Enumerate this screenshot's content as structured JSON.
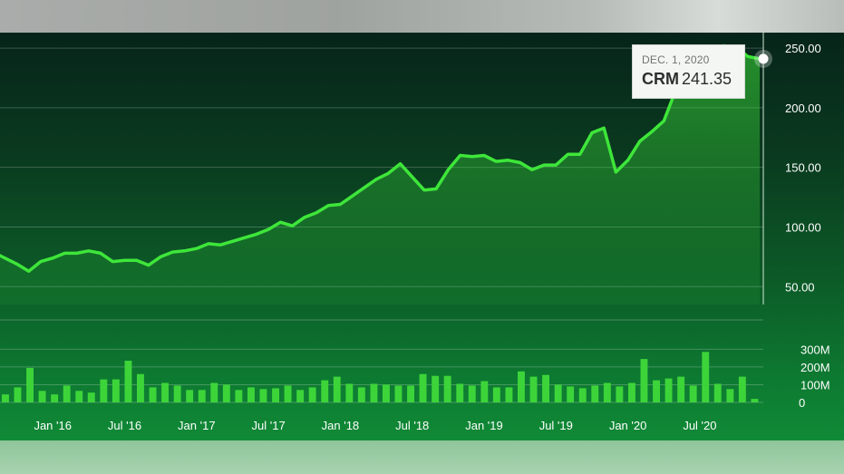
{
  "tooltip": {
    "date": "DEC. 1, 2020",
    "ticker": "CRM",
    "value": "241.35"
  },
  "colors": {
    "line": "#3ee63a",
    "bars": "#3dd43a",
    "tooltip_bg": "#f4f6f4"
  },
  "chart_data": [
    {
      "type": "area",
      "y_axis_side": "right",
      "ylim": [
        35,
        263
      ],
      "y_ticks": [
        50,
        100,
        150,
        200,
        250
      ],
      "y_tick_labels": [
        "50.00",
        "100.00",
        "150.00",
        "200.00",
        "250.00"
      ],
      "x_tick_labels": [
        "Jan '16",
        "Jul '16",
        "Jan '17",
        "Jul '17",
        "Jan '18",
        "Jul '18",
        "Jan '19",
        "Jul '19",
        "Jan '20",
        "Jul '20"
      ],
      "x_tick_dates": [
        "2016-01",
        "2016-07",
        "2017-01",
        "2017-07",
        "2018-01",
        "2018-07",
        "2019-01",
        "2019-07",
        "2020-01",
        "2020-07"
      ],
      "series": [
        {
          "x": [
            "2015-08",
            "2015-09",
            "2015-10",
            "2015-11",
            "2015-12",
            "2016-01",
            "2016-02",
            "2016-03",
            "2016-04",
            "2016-05",
            "2016-06",
            "2016-07",
            "2016-08",
            "2016-09",
            "2016-10",
            "2016-11",
            "2016-12",
            "2017-01",
            "2017-02",
            "2017-03",
            "2017-04",
            "2017-05",
            "2017-06",
            "2017-07",
            "2017-08",
            "2017-09",
            "2017-10",
            "2017-11",
            "2017-12",
            "2018-01",
            "2018-02",
            "2018-03",
            "2018-04",
            "2018-05",
            "2018-06",
            "2018-07",
            "2018-08",
            "2018-09",
            "2018-10",
            "2018-11",
            "2018-12",
            "2019-01",
            "2019-02",
            "2019-03",
            "2019-04",
            "2019-05",
            "2019-06",
            "2019-07",
            "2019-08",
            "2019-09",
            "2019-10",
            "2019-11",
            "2019-12",
            "2020-01",
            "2020-02",
            "2020-03",
            "2020-04",
            "2020-05",
            "2020-06",
            "2020-07",
            "2020-08",
            "2020-09",
            "2020-10",
            "2020-11",
            "2020-12"
          ],
          "values": [
            79,
            74,
            69,
            63,
            71,
            74,
            78,
            78,
            80,
            78,
            71,
            72,
            72,
            68,
            75,
            79,
            80,
            82,
            86,
            85,
            88,
            91,
            94,
            98,
            104,
            101,
            108,
            112,
            118,
            119,
            126,
            133,
            140,
            145,
            153,
            142,
            131,
            132,
            148,
            160,
            159,
            160,
            155,
            156,
            154,
            148,
            152,
            152,
            161,
            161,
            179,
            183,
            146,
            156,
            172,
            180,
            189,
            215,
            246,
            250,
            250,
            252,
            251,
            243,
            241
          ]
        }
      ]
    },
    {
      "type": "bar",
      "y_axis_side": "right",
      "ylim": [
        0,
        450
      ],
      "y_ticks": [
        0,
        100,
        200,
        300
      ],
      "y_tick_labels": [
        "0",
        "100M",
        "200M",
        "300M"
      ],
      "values": [
        45,
        85,
        195,
        65,
        45,
        95,
        65,
        55,
        130,
        130,
        235,
        160,
        85,
        110,
        95,
        70,
        70,
        110,
        100,
        70,
        85,
        75,
        80,
        95,
        70,
        85,
        125,
        145,
        105,
        85,
        105,
        100,
        95,
        95,
        160,
        150,
        150,
        105,
        95,
        120,
        85,
        85,
        175,
        145,
        155,
        100,
        90,
        80,
        95,
        110,
        90,
        110,
        245,
        125,
        135,
        145,
        95,
        285,
        105,
        75,
        145,
        20
      ]
    }
  ]
}
